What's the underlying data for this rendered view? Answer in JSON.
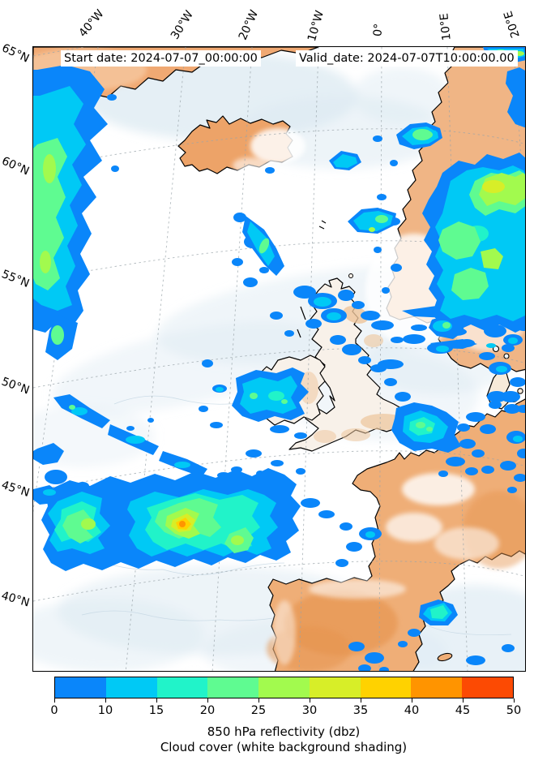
{
  "header": {
    "start_date": "Start date: 2024-07-07_00:00:00",
    "valid_date": "Valid_date: 2024-07-07T10:00:00.00"
  },
  "axes": {
    "top": [
      "40°W",
      "30°W",
      "20°W",
      "10°W",
      "0°",
      "10°E",
      "20°E"
    ],
    "left": [
      "65°N",
      "60°N",
      "55°N",
      "50°N",
      "45°N",
      "40°N"
    ]
  },
  "colorbar": {
    "ticks": [
      "0",
      "10",
      "15",
      "20",
      "25",
      "30",
      "35",
      "40",
      "45",
      "50"
    ],
    "colors": [
      "#0a86fa",
      "#00c9f5",
      "#21f3c9",
      "#5ffb91",
      "#a2fa4e",
      "#d7ee28",
      "#ffd200",
      "#ff9400",
      "#fc4a03"
    ],
    "label_line1": "850 hPa reflectivity (dbz)",
    "label_line2": "Cloud cover (white background shading)"
  },
  "map": {
    "colors": {
      "ocean": "#ffffff",
      "cloud_shade": "#dce9f2",
      "clear_land": "#f0b080",
      "coastline": "#000000"
    }
  }
}
